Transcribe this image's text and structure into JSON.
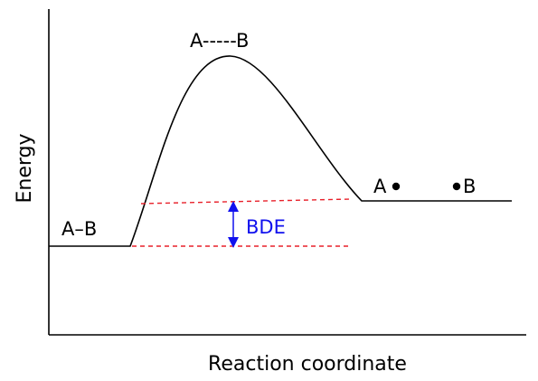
{
  "diagram": {
    "axes": {
      "xlabel": "Reaction coordinate",
      "ylabel": "Energy"
    },
    "labels": {
      "reactant": "A–B",
      "transition_state": "A-----B",
      "product_left": "A",
      "product_right": "B",
      "bde": "BDE"
    },
    "colors": {
      "curve": "#000000",
      "guide_lines": "#e8202a",
      "bde_arrow": "#1010ee",
      "bde_text": "#1010ee"
    }
  }
}
